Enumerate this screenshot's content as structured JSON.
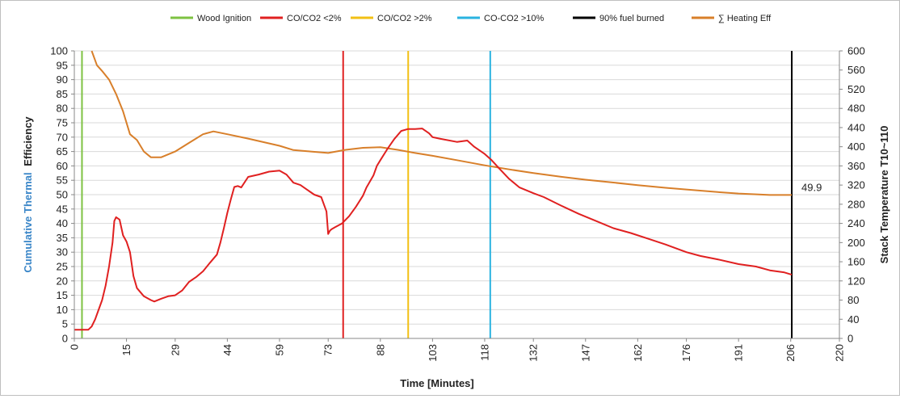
{
  "chart_data": {
    "type": "line",
    "xlabel": "Time [Minutes]",
    "ylabel_left": {
      "part1": "Cumulative Thermal",
      "part2": "Efficiency"
    },
    "ylabel_right": "Stack Temperature T10~110",
    "xlim": [
      0,
      220
    ],
    "ylim_left": [
      0,
      100
    ],
    "ylim_right": [
      0,
      600
    ],
    "x_ticks": [
      "0",
      "15",
      "29",
      "44",
      "59",
      "73",
      "88",
      "103",
      "118",
      "132",
      "147",
      "162",
      "176",
      "191",
      "206",
      "220"
    ],
    "y_left_ticks": [
      "0",
      "5",
      "10",
      "15",
      "20",
      "25",
      "30",
      "35",
      "40",
      "45",
      "50",
      "55",
      "60",
      "65",
      "70",
      "75",
      "80",
      "85",
      "90",
      "95",
      "100"
    ],
    "y_right_ticks": [
      "0",
      "40",
      "80",
      "120",
      "160",
      "200",
      "240",
      "280",
      "320",
      "360",
      "400",
      "440",
      "480",
      "520",
      "560",
      "600"
    ],
    "grid": "horizontal only",
    "legend_position": "top",
    "markers": [
      {
        "name": "Wood Ignition",
        "x": 2.2,
        "color": "#7dc242"
      },
      {
        "name": "CO/CO2 <2%",
        "x": 77.3,
        "color": "#e02020"
      },
      {
        "name": "CO/CO2 >2%",
        "x": 96.0,
        "color": "#f2c014"
      },
      {
        "name": "CO-CO2 >10%",
        "x": 119.6,
        "color": "#2ab3e0"
      },
      {
        "name": "90% fuel burned",
        "x": 206.3,
        "color": "#000000"
      }
    ],
    "series": [
      {
        "name": "∑ Heating Eff",
        "axis": "left",
        "color": "#d87f2a",
        "x": [
          5,
          6.5,
          8,
          10,
          12,
          14,
          16,
          18,
          20,
          22,
          25,
          29,
          33,
          37,
          40,
          44,
          50,
          59,
          63,
          68,
          73,
          78,
          83,
          88,
          93,
          98,
          103,
          110,
          118,
          125,
          132,
          140,
          147,
          155,
          162,
          170,
          176,
          185,
          191,
          200,
          206.3
        ],
        "y": [
          100,
          95,
          93,
          90,
          85,
          79,
          71,
          69,
          65,
          63,
          63,
          65,
          68,
          71,
          72,
          71,
          69.5,
          67,
          65.5,
          65,
          64.5,
          65.6,
          66.3,
          66.5,
          65.6,
          64.5,
          63.5,
          62,
          60.2,
          58.8,
          57.5,
          56.2,
          55.2,
          54.2,
          53.3,
          52.4,
          51.8,
          50.9,
          50.4,
          49.9,
          49.9
        ]
      },
      {
        "name": "Stack Temperature",
        "axis": "right",
        "color": "#e02020",
        "x": [
          0,
          2,
          4,
          5,
          6,
          7,
          8,
          9,
          10,
          11,
          11.5,
          12,
          13,
          14,
          15,
          16,
          17,
          18,
          20,
          22,
          23,
          25,
          27,
          29,
          31,
          33,
          35,
          37,
          39,
          41,
          42,
          43,
          44,
          45,
          46,
          47,
          48,
          50,
          53,
          56,
          59,
          61,
          63,
          65,
          67,
          69,
          71,
          72.5,
          73,
          73.5,
          74,
          75,
          77,
          79,
          81,
          83,
          84,
          86,
          87,
          88,
          90,
          92,
          94,
          96,
          98,
          100,
          102,
          103,
          105,
          110,
          113,
          115,
          118,
          120,
          122,
          125,
          128,
          132,
          135,
          140,
          145,
          150,
          155,
          160,
          165,
          170,
          176,
          180,
          185,
          191,
          196,
          200,
          204,
          206.3
        ],
        "y": [
          18,
          18,
          18,
          25,
          40,
          60,
          80,
          110,
          150,
          200,
          245,
          253,
          248,
          215,
          202,
          180,
          130,
          105,
          88,
          80,
          77,
          83,
          88,
          90,
          100,
          118,
          128,
          140,
          158,
          175,
          200,
          230,
          262,
          290,
          316,
          318,
          315,
          337,
          342,
          348,
          350,
          342,
          325,
          320,
          310,
          300,
          295,
          265,
          218,
          225,
          228,
          232,
          240,
          255,
          275,
          298,
          315,
          340,
          360,
          372,
          395,
          416,
          433,
          437,
          437,
          438,
          428,
          420,
          417,
          410,
          413,
          400,
          385,
          372,
          356,
          333,
          315,
          303,
          295,
          277,
          260,
          245,
          230,
          220,
          208,
          196,
          180,
          172,
          165,
          155,
          150,
          142,
          138,
          133
        ]
      }
    ],
    "annotations": [
      {
        "text": "49.9",
        "x": 206.3,
        "y": 49.9
      }
    ]
  }
}
